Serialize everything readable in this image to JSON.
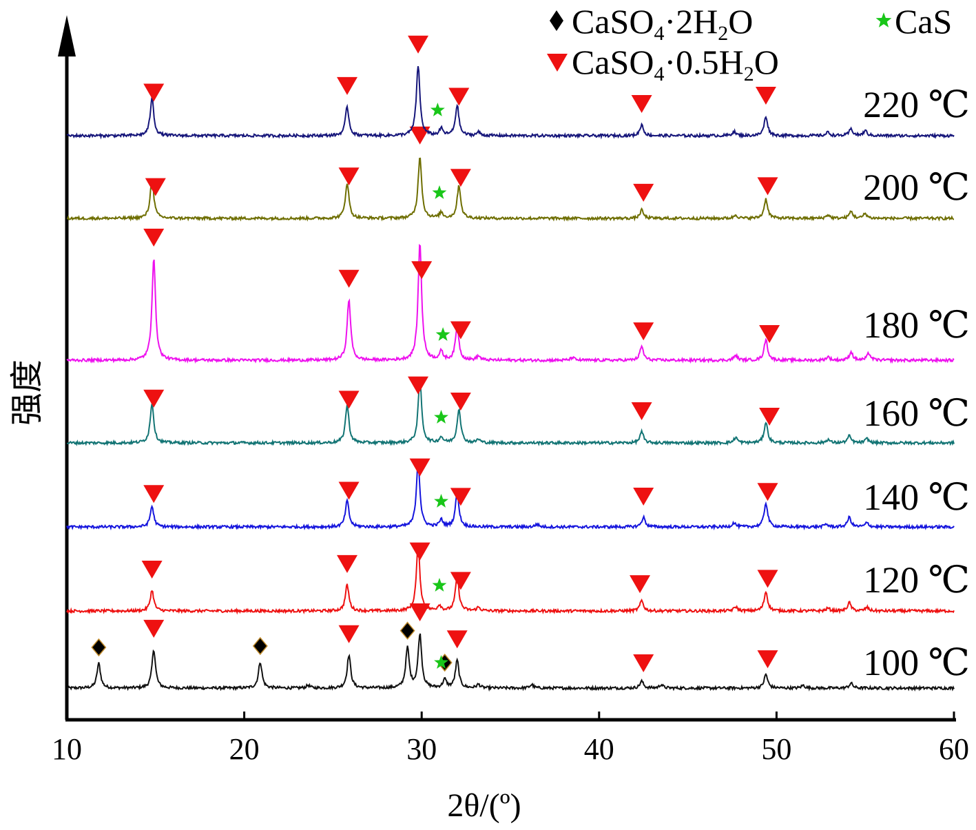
{
  "chart_data": {
    "type": "line",
    "xlabel": "2θ/(º)",
    "ylabel": "强度",
    "xlim": [
      10,
      60
    ],
    "xticks": [
      10,
      20,
      30,
      40,
      50,
      60
    ],
    "grid": false,
    "legend_position": "top-right",
    "legend": [
      {
        "marker": "diamond",
        "color": "#000000",
        "label": "CaSO4·2H2O"
      },
      {
        "marker": "star",
        "color": "#19c619",
        "label": "CaS"
      },
      {
        "marker": "triangle-down",
        "color": "#ee1111",
        "label": "CaSO4·0.5H2O"
      }
    ],
    "series": [
      {
        "name": "100 ℃",
        "color": "#111111",
        "peaks": [
          [
            11.8,
            36
          ],
          [
            14.9,
            56
          ],
          [
            20.9,
            38
          ],
          [
            23.6,
            4
          ],
          [
            25.9,
            48
          ],
          [
            29.2,
            58
          ],
          [
            29.9,
            78
          ],
          [
            31.3,
            12
          ],
          [
            32.0,
            40
          ],
          [
            33.2,
            5
          ],
          [
            36.2,
            5
          ],
          [
            42.4,
            10
          ],
          [
            43.5,
            5
          ],
          [
            49.4,
            20
          ],
          [
            51.5,
            4
          ],
          [
            54.2,
            7
          ]
        ],
        "markers": {
          "triangle": [
            14.9,
            25.9,
            29.9,
            32.0,
            42.5,
            49.5
          ],
          "diamond": [
            11.8,
            20.9,
            29.2,
            31.3
          ],
          "star": [
            31.1
          ]
        }
      },
      {
        "name": "120 ℃",
        "color": "#ee1111",
        "peaks": [
          [
            14.8,
            30
          ],
          [
            25.8,
            38
          ],
          [
            29.8,
            95
          ],
          [
            31.0,
            8
          ],
          [
            32.0,
            50
          ],
          [
            33.2,
            5
          ],
          [
            42.4,
            15
          ],
          [
            47.7,
            6
          ],
          [
            49.4,
            28
          ],
          [
            52.9,
            4
          ],
          [
            54.1,
            12
          ],
          [
            55.1,
            5
          ]
        ],
        "markers": {
          "triangle": [
            14.8,
            25.8,
            29.9,
            32.2,
            42.3,
            49.5
          ],
          "star": [
            31.0
          ]
        }
      },
      {
        "name": "140 ℃",
        "color": "#1515dd",
        "peaks": [
          [
            14.8,
            30
          ],
          [
            25.8,
            38
          ],
          [
            29.8,
            95
          ],
          [
            31.1,
            10
          ],
          [
            32.0,
            50
          ],
          [
            36.5,
            4
          ],
          [
            42.5,
            14
          ],
          [
            47.6,
            6
          ],
          [
            49.4,
            35
          ],
          [
            52.8,
            4
          ],
          [
            54.1,
            14
          ],
          [
            55.1,
            6
          ]
        ],
        "markers": {
          "triangle": [
            14.9,
            25.9,
            29.9,
            32.2,
            42.5,
            49.5
          ],
          "star": [
            31.1
          ]
        }
      },
      {
        "name": "160 ℃",
        "color": "#127474",
        "peaks": [
          [
            14.8,
            58
          ],
          [
            25.8,
            55
          ],
          [
            29.9,
            90
          ],
          [
            31.1,
            8
          ],
          [
            32.1,
            50
          ],
          [
            33.2,
            5
          ],
          [
            42.4,
            16
          ],
          [
            47.7,
            8
          ],
          [
            49.4,
            30
          ],
          [
            52.9,
            5
          ],
          [
            54.1,
            10
          ],
          [
            55.1,
            6
          ]
        ],
        "markers": {
          "triangle": [
            14.9,
            25.9,
            29.8,
            32.2,
            42.4,
            49.6
          ],
          "star": [
            31.1
          ]
        }
      },
      {
        "name": "180 ℃",
        "color": "#ee11ee",
        "peaks": [
          [
            14.9,
            148
          ],
          [
            25.9,
            88
          ],
          [
            29.9,
            170
          ],
          [
            31.1,
            12
          ],
          [
            32.0,
            48
          ],
          [
            33.2,
            6
          ],
          [
            38.5,
            4
          ],
          [
            42.4,
            20
          ],
          [
            47.7,
            7
          ],
          [
            49.4,
            30
          ],
          [
            52.9,
            5
          ],
          [
            54.2,
            12
          ],
          [
            55.2,
            10
          ]
        ],
        "markers": {
          "triangle": [
            14.9,
            25.9,
            30.0,
            32.2,
            42.5,
            49.6
          ],
          "star": [
            31.2
          ]
        }
      },
      {
        "name": "200 ℃",
        "color": "#6e6e00",
        "peaks": [
          [
            14.8,
            58
          ],
          [
            25.8,
            52
          ],
          [
            29.9,
            90
          ],
          [
            31.1,
            8
          ],
          [
            32.1,
            48
          ],
          [
            42.4,
            12
          ],
          [
            47.7,
            5
          ],
          [
            49.4,
            28
          ],
          [
            52.9,
            5
          ],
          [
            54.2,
            10
          ],
          [
            55.0,
            7
          ]
        ],
        "markers": {
          "triangle": [
            15.0,
            25.9,
            29.9,
            32.2,
            42.5,
            49.5
          ],
          "star": [
            31.0
          ]
        }
      },
      {
        "name": "220 ℃",
        "color": "#15157a",
        "peaks": [
          [
            14.8,
            55
          ],
          [
            25.8,
            42
          ],
          [
            29.8,
            102
          ],
          [
            31.1,
            10
          ],
          [
            32.0,
            44
          ],
          [
            33.2,
            5
          ],
          [
            42.4,
            16
          ],
          [
            47.6,
            6
          ],
          [
            49.4,
            28
          ],
          [
            52.9,
            5
          ],
          [
            54.2,
            10
          ],
          [
            55.0,
            7
          ]
        ],
        "markers": {
          "triangle": [
            14.9,
            25.8,
            29.8,
            32.1,
            42.4,
            49.4
          ],
          "star": [
            30.9
          ]
        }
      }
    ]
  }
}
